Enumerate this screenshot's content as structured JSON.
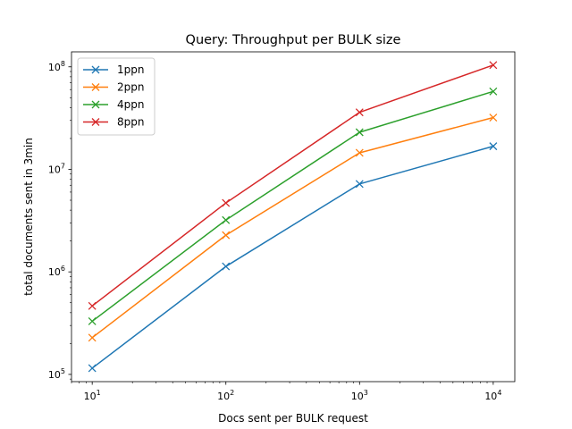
{
  "chart_data": {
    "type": "line",
    "title": "Query: Throughput per BULK size",
    "xlabel": "Docs sent per BULK request",
    "ylabel": "total documents sent in 3min",
    "x_scale": "log",
    "y_scale": "log",
    "xlim": [
      7,
      14500
    ],
    "ylim": [
      85000,
      140000000
    ],
    "x_ticks": [
      {
        "value": 10,
        "base": "10",
        "exp": "1"
      },
      {
        "value": 100,
        "base": "10",
        "exp": "2"
      },
      {
        "value": 1000,
        "base": "10",
        "exp": "3"
      },
      {
        "value": 10000,
        "base": "10",
        "exp": "4"
      }
    ],
    "y_ticks": [
      {
        "value": 100000,
        "base": "10",
        "exp": "5"
      },
      {
        "value": 1000000,
        "base": "10",
        "exp": "6"
      },
      {
        "value": 10000000,
        "base": "10",
        "exp": "7"
      },
      {
        "value": 100000000,
        "base": "10",
        "exp": "8"
      }
    ],
    "grid": false,
    "legend_position": "top-left",
    "marker": "x",
    "x": [
      10,
      100,
      1000,
      10000
    ],
    "series": [
      {
        "name": "1ppn",
        "color": "#1f77b4",
        "values": [
          115000,
          1130000,
          7200000,
          16800000
        ]
      },
      {
        "name": "2ppn",
        "color": "#ff7f0e",
        "values": [
          228000,
          2280000,
          14500000,
          32000000
        ]
      },
      {
        "name": "4ppn",
        "color": "#2ca02c",
        "values": [
          330000,
          3200000,
          23000000,
          57500000
        ]
      },
      {
        "name": "8ppn",
        "color": "#d62728",
        "values": [
          465000,
          4700000,
          36000000,
          104000000
        ]
      }
    ]
  }
}
